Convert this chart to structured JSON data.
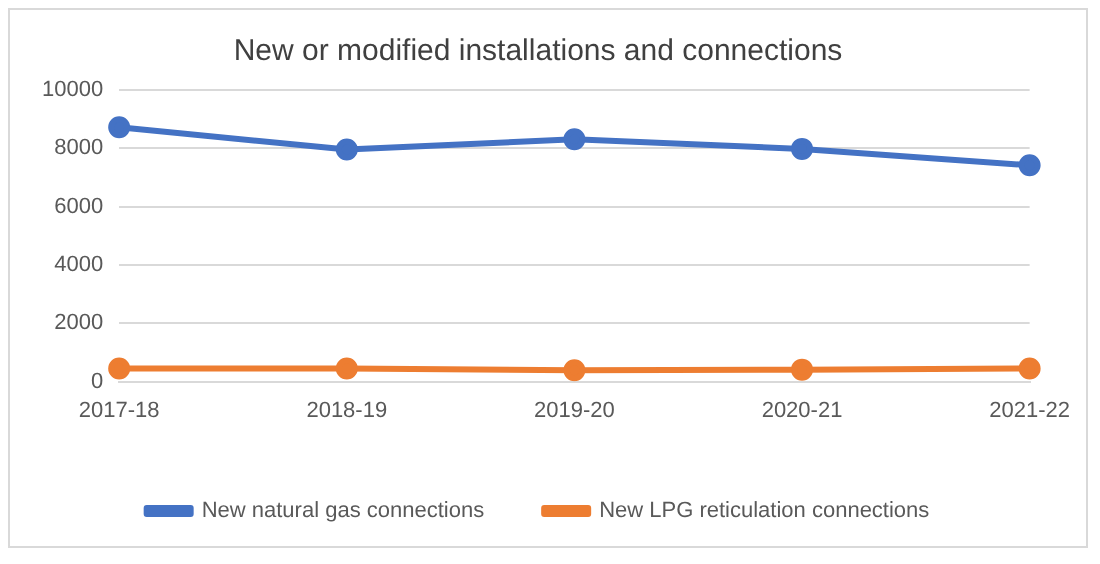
{
  "chart_data": {
    "type": "line",
    "title": "New or modified installations and connections",
    "categories": [
      "2017-18",
      "2018-19",
      "2019-20",
      "2020-21",
      "2021-22"
    ],
    "series": [
      {
        "name": "New natural gas connections",
        "color": "#4472c4",
        "values": [
          8720,
          7960,
          8310,
          7980,
          7420
        ]
      },
      {
        "name": "New LPG reticulation connections",
        "color": "#ed7d31",
        "values": [
          450,
          450,
          390,
          410,
          450
        ]
      }
    ],
    "ylim": [
      0,
      10000
    ],
    "yticks": [
      0,
      2000,
      4000,
      6000,
      8000,
      10000
    ],
    "grid": "y",
    "legend": "bottom",
    "marker": "circle",
    "line_style": "solid"
  }
}
